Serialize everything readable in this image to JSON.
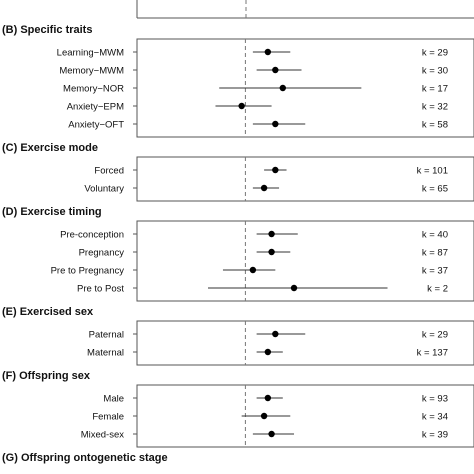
{
  "chart_data": [
    {
      "type": "forest",
      "title": "(B) Specific traits",
      "zero_line": 0,
      "xlim": [
        -1,
        4
      ],
      "rows": [
        {
          "label": "Learning−MWM",
          "estimate": 0.6,
          "ci": [
            0.2,
            1.2
          ],
          "k_label": "k = 29"
        },
        {
          "label": "Memory−MWM",
          "estimate": 0.8,
          "ci": [
            0.3,
            1.5
          ],
          "k_label": "k = 30"
        },
        {
          "label": "Memory−NOR",
          "estimate": 1.0,
          "ci": [
            -0.7,
            3.1
          ],
          "k_label": "k = 17"
        },
        {
          "label": "Anxiety−EPM",
          "estimate": -0.1,
          "ci": [
            -0.8,
            0.7
          ],
          "k_label": "k = 32"
        },
        {
          "label": "Anxiety−OFT",
          "estimate": 0.8,
          "ci": [
            0.2,
            1.6
          ],
          "k_label": "k = 58"
        }
      ]
    },
    {
      "type": "forest",
      "title": "(C) Exercise mode",
      "zero_line": 0,
      "xlim": [
        -1,
        4
      ],
      "rows": [
        {
          "label": "Forced",
          "estimate": 0.8,
          "ci": [
            0.5,
            1.1
          ],
          "k_label": "k = 101"
        },
        {
          "label": "Voluntary",
          "estimate": 0.5,
          "ci": [
            0.2,
            0.9
          ],
          "k_label": "k = 65"
        }
      ]
    },
    {
      "type": "forest",
      "title": "(D) Exercise timing",
      "zero_line": 0,
      "xlim": [
        -1,
        4
      ],
      "rows": [
        {
          "label": "Pre-conception",
          "estimate": 0.7,
          "ci": [
            0.3,
            1.4
          ],
          "k_label": "k = 40"
        },
        {
          "label": "Pregnancy",
          "estimate": 0.7,
          "ci": [
            0.3,
            1.2
          ],
          "k_label": "k = 87"
        },
        {
          "label": "Pre to Pregnancy",
          "estimate": 0.2,
          "ci": [
            -0.6,
            0.8
          ],
          "k_label": "k = 37"
        },
        {
          "label": "Pre to Post",
          "estimate": 1.3,
          "ci": [
            -1.0,
            3.8
          ],
          "k_label": "k = 2"
        }
      ]
    },
    {
      "type": "forest",
      "title": "(E) Exercised sex",
      "zero_line": 0,
      "xlim": [
        -1,
        4
      ],
      "rows": [
        {
          "label": "Paternal",
          "estimate": 0.8,
          "ci": [
            0.3,
            1.6
          ],
          "k_label": "k = 29"
        },
        {
          "label": "Maternal",
          "estimate": 0.6,
          "ci": [
            0.3,
            1.0
          ],
          "k_label": "k = 137"
        }
      ]
    },
    {
      "type": "forest",
      "title": "(F) Offspring sex",
      "zero_line": 0,
      "xlim": [
        -1,
        4
      ],
      "rows": [
        {
          "label": "Male",
          "estimate": 0.6,
          "ci": [
            0.3,
            1.0
          ],
          "k_label": "k = 93"
        },
        {
          "label": "Female",
          "estimate": 0.5,
          "ci": [
            -0.1,
            1.2
          ],
          "k_label": "k = 34"
        },
        {
          "label": "Mixed-sex",
          "estimate": 0.7,
          "ci": [
            0.2,
            1.3
          ],
          "k_label": "k = 39"
        }
      ]
    },
    {
      "type": "forest",
      "title": "(G) Offspring ontogenetic stage",
      "rows": []
    }
  ]
}
